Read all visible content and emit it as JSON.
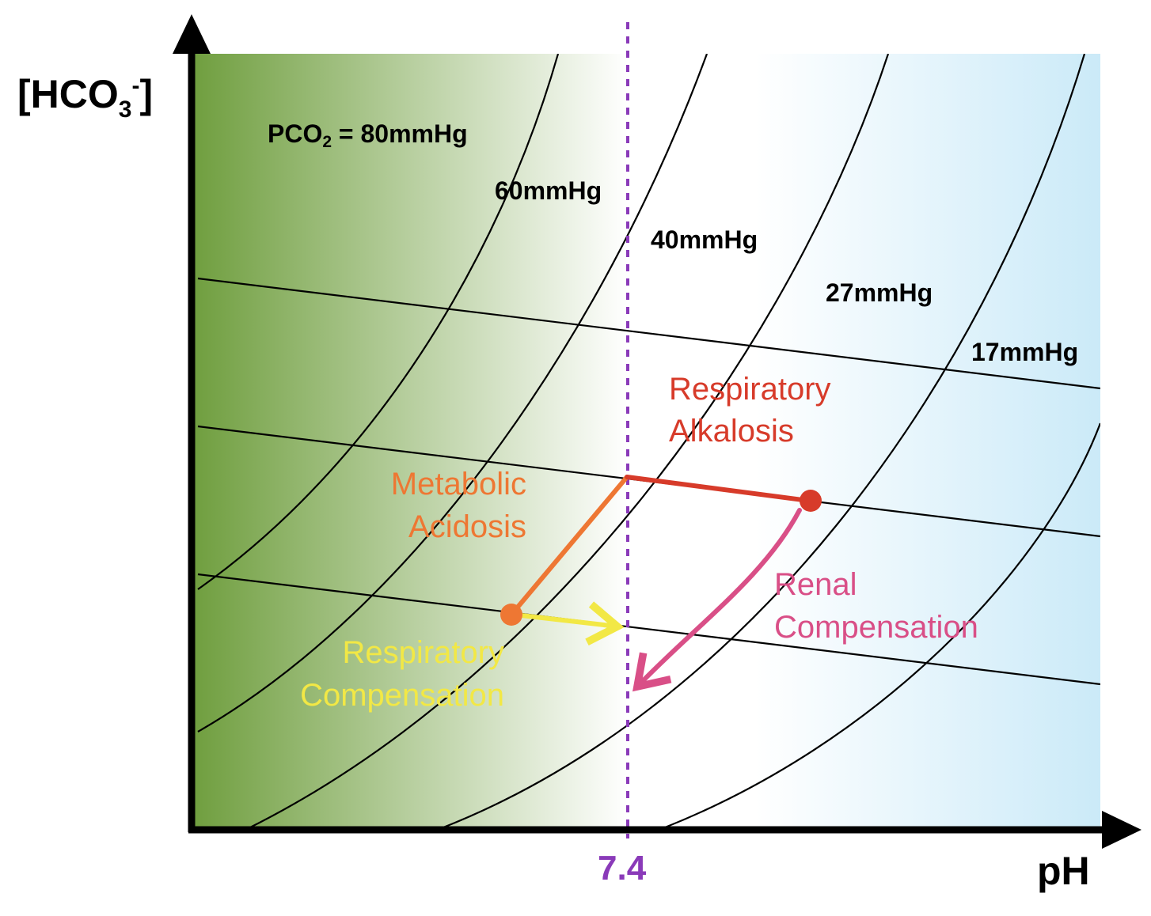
{
  "axes": {
    "y_title_main": "[HCO",
    "y_title_sub": "3",
    "y_title_sup": "-",
    "y_title_close": "]",
    "x_title": "pH"
  },
  "reference_line": {
    "label": "7.4",
    "color": "#8a3ab9"
  },
  "isobars": {
    "first_prefix": "PCO",
    "first_sub": "2",
    "first_suffix": " = 80mmHg",
    "labels": [
      "60mmHg",
      "40mmHg",
      "27mmHg",
      "17mmHg"
    ]
  },
  "annotations": {
    "respiratory_alkalosis": {
      "line1": "Respiratory",
      "line2": "Alkalosis",
      "color": "#d73b2a"
    },
    "metabolic_acidosis": {
      "line1": "Metabolic",
      "line2": "Acidosis",
      "color": "#ee7733"
    },
    "renal_compensation": {
      "line1": "Renal",
      "line2": "Compensation",
      "color": "#d94f87"
    },
    "respiratory_compensation": {
      "line1": "Respiratory",
      "line2": "Compensation",
      "color": "#f2e845"
    }
  },
  "background": {
    "acid_color": "#6f9e3e",
    "base_color": "#cbeaf8"
  }
}
